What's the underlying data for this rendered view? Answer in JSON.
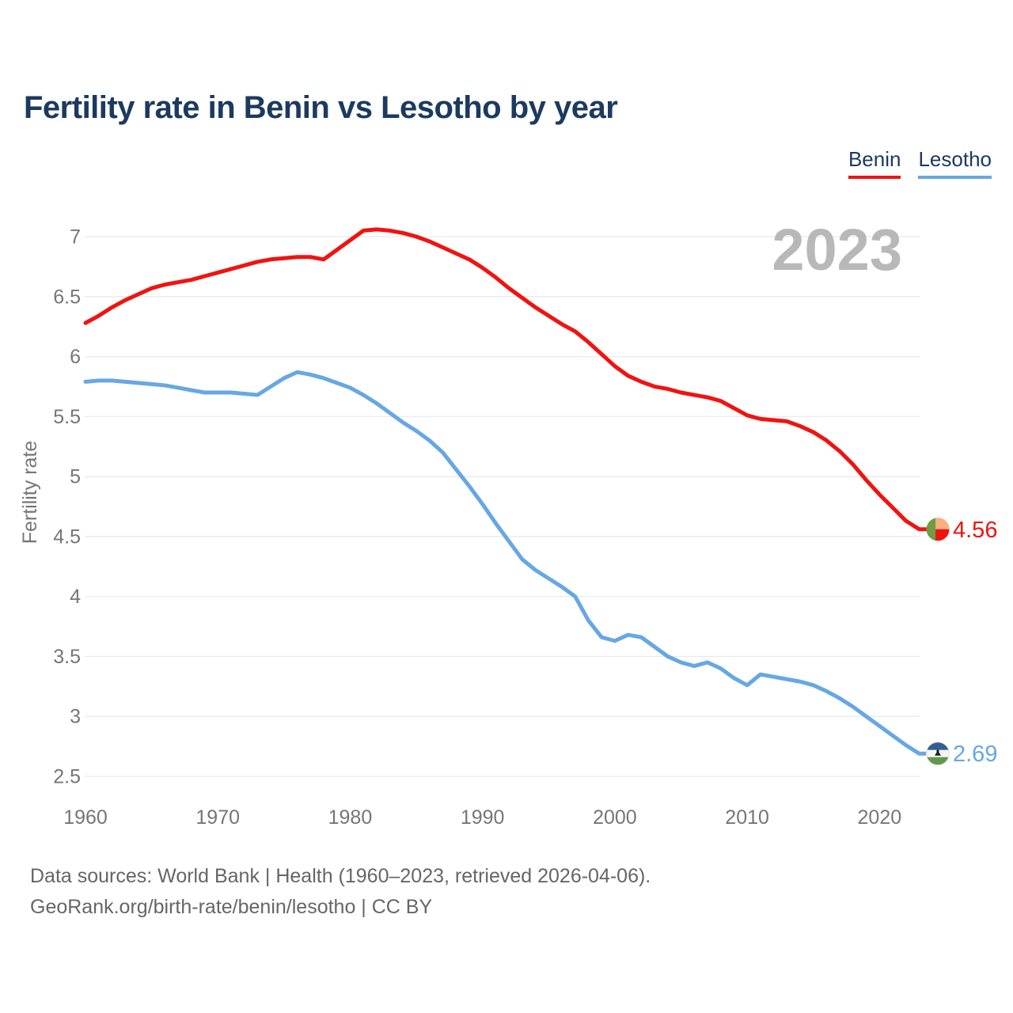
{
  "title": "Fertility rate in Benin vs Lesotho by year",
  "watermark": "2023",
  "legend": [
    {
      "label": "Benin",
      "color": "#f01311"
    },
    {
      "label": "Lesotho",
      "color": "#67a7e3"
    }
  ],
  "footer": {
    "line1": "Data sources: World Bank | Health (1960–2023, retrieved 2026-04-06).",
    "line2": "GeoRank.org/birth-rate/benin/lesotho | CC BY"
  },
  "colors": {
    "title": "#1c3a60",
    "axis_text": "#767676",
    "gridline": "#e9e9e9",
    "watermark": "#b8b8b8",
    "benin_red": "#f01311",
    "lesotho_blue": "#67a7e3",
    "benin_flag": {
      "green": "#6e9d44",
      "yellow": "#f8b080",
      "red": "#ee1511"
    },
    "lesotho_flag": {
      "blue": "#2f5f90",
      "white": "#f5f5f5",
      "green": "#61984b",
      "hat": "#1c1c1c"
    }
  },
  "chart_data": {
    "type": "line",
    "title": "Fertility rate in Benin vs Lesotho by year",
    "xlabel": "",
    "ylabel": "Fertility rate",
    "ylim": [
      2.5,
      7
    ],
    "yticks": [
      7,
      6.5,
      6,
      5.5,
      5,
      4.5,
      4,
      3.5,
      3,
      2.5
    ],
    "xticks": [
      1960,
      1970,
      1980,
      1990,
      2000,
      2010,
      2020
    ],
    "grid": true,
    "legend_position": "top-right",
    "x": [
      1960,
      1961,
      1962,
      1963,
      1964,
      1965,
      1966,
      1967,
      1968,
      1969,
      1970,
      1971,
      1972,
      1973,
      1974,
      1975,
      1976,
      1977,
      1978,
      1979,
      1980,
      1981,
      1982,
      1983,
      1984,
      1985,
      1986,
      1987,
      1988,
      1989,
      1990,
      1991,
      1992,
      1993,
      1994,
      1995,
      1996,
      1997,
      1998,
      1999,
      2000,
      2001,
      2002,
      2003,
      2004,
      2005,
      2006,
      2007,
      2008,
      2009,
      2010,
      2011,
      2012,
      2013,
      2014,
      2015,
      2016,
      2017,
      2018,
      2019,
      2020,
      2021,
      2022,
      2023
    ],
    "series": [
      {
        "name": "Benin",
        "color": "#f01311",
        "end_label": "4.56",
        "values": [
          6.28,
          6.34,
          6.41,
          6.47,
          6.52,
          6.57,
          6.6,
          6.62,
          6.64,
          6.67,
          6.7,
          6.73,
          6.76,
          6.79,
          6.81,
          6.82,
          6.83,
          6.83,
          6.81,
          6.89,
          6.97,
          7.05,
          7.06,
          7.05,
          7.03,
          7.0,
          6.96,
          6.91,
          6.86,
          6.81,
          6.74,
          6.66,
          6.57,
          6.49,
          6.41,
          6.34,
          6.27,
          6.21,
          6.12,
          6.02,
          5.92,
          5.84,
          5.79,
          5.75,
          5.73,
          5.7,
          5.68,
          5.66,
          5.63,
          5.57,
          5.51,
          5.48,
          5.47,
          5.46,
          5.42,
          5.37,
          5.3,
          5.21,
          5.1,
          4.97,
          4.85,
          4.74,
          4.63,
          4.56
        ]
      },
      {
        "name": "Lesotho",
        "color": "#67a7e3",
        "end_label": "2.69",
        "values": [
          5.79,
          5.8,
          5.8,
          5.79,
          5.78,
          5.77,
          5.76,
          5.74,
          5.72,
          5.7,
          5.7,
          5.7,
          5.69,
          5.68,
          5.75,
          5.82,
          5.87,
          5.85,
          5.82,
          5.78,
          5.74,
          5.68,
          5.61,
          5.53,
          5.45,
          5.38,
          5.3,
          5.2,
          5.06,
          4.92,
          4.77,
          4.61,
          4.46,
          4.31,
          4.22,
          4.15,
          4.08,
          4.0,
          3.8,
          3.66,
          3.63,
          3.68,
          3.66,
          3.58,
          3.5,
          3.45,
          3.42,
          3.45,
          3.4,
          3.32,
          3.26,
          3.35,
          3.33,
          3.31,
          3.29,
          3.26,
          3.21,
          3.15,
          3.08,
          3.0,
          2.92,
          2.84,
          2.76,
          2.69
        ]
      }
    ]
  }
}
